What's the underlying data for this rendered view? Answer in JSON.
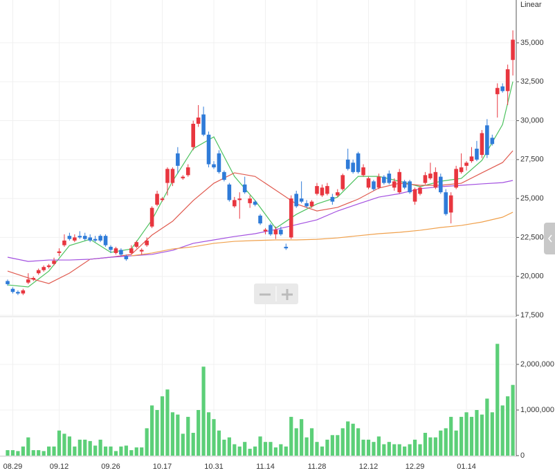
{
  "chart_data": [
    {
      "type": "candlestick",
      "axis_label": "Linear",
      "categories": [
        null,
        "08.29",
        null,
        null,
        null,
        null,
        null,
        null,
        null,
        null,
        "09.12",
        null,
        null,
        null,
        null,
        null,
        null,
        null,
        null,
        null,
        "09.26",
        null,
        null,
        null,
        null,
        null,
        null,
        null,
        null,
        null,
        "10.17",
        null,
        null,
        null,
        null,
        null,
        null,
        null,
        null,
        null,
        "10.31",
        null,
        null,
        null,
        null,
        null,
        null,
        null,
        null,
        null,
        "11.14",
        null,
        null,
        null,
        null,
        null,
        null,
        null,
        null,
        null,
        "11.28",
        null,
        null,
        null,
        null,
        null,
        null,
        null,
        null,
        null,
        "12.12",
        null,
        null,
        null,
        null,
        null,
        null,
        null,
        null,
        "12.29",
        null,
        null,
        null,
        null,
        null,
        null,
        null,
        null,
        null,
        "01.14",
        null,
        null,
        null,
        null,
        null,
        null,
        null,
        null,
        null
      ],
      "up_color": "#e8363f",
      "down_color": "#2f7bd8",
      "ohlc": [
        [
          19700,
          19800,
          19400,
          19500
        ],
        [
          19200,
          19300,
          18900,
          19000
        ],
        [
          19000,
          19100,
          18800,
          18900
        ],
        [
          18900,
          19200,
          18800,
          19100
        ],
        [
          19600,
          20200,
          19500,
          19800
        ],
        [
          19800,
          20000,
          19700,
          19900
        ],
        [
          20200,
          20500,
          20100,
          20400
        ],
        [
          20400,
          20700,
          20300,
          20600
        ],
        [
          20600,
          20800,
          20500,
          20700
        ],
        [
          20800,
          21200,
          20700,
          21000
        ],
        [
          21500,
          21800,
          21300,
          21600
        ],
        [
          22000,
          22700,
          21900,
          22300
        ],
        [
          22600,
          22800,
          22300,
          22400
        ],
        [
          22300,
          22700,
          22200,
          22500
        ],
        [
          22600,
          22900,
          22400,
          22500
        ],
        [
          22600,
          22800,
          22300,
          22400
        ],
        [
          22500,
          22700,
          22200,
          22300
        ],
        [
          22400,
          22600,
          22200,
          22300
        ],
        [
          22600,
          22700,
          22200,
          22300
        ],
        [
          22600,
          22700,
          21900,
          22000
        ],
        [
          21900,
          22000,
          21500,
          21700
        ],
        [
          21500,
          21900,
          21400,
          21800
        ],
        [
          21700,
          21800,
          21300,
          21400
        ],
        [
          21300,
          21400,
          21000,
          21100
        ],
        [
          21500,
          22000,
          21400,
          21800
        ],
        [
          21900,
          22300,
          21800,
          22200
        ],
        [
          21600,
          21800,
          21400,
          21700
        ],
        [
          22000,
          22500,
          21900,
          22300
        ],
        [
          23200,
          24500,
          23100,
          24400
        ],
        [
          24600,
          25500,
          24500,
          25300
        ],
        [
          24900,
          25100,
          24800,
          25000
        ],
        [
          26000,
          27000,
          25200,
          26900
        ],
        [
          26000,
          27000,
          25800,
          26900
        ],
        [
          27900,
          28300,
          26600,
          27100
        ],
        [
          26300,
          26500,
          26200,
          26400
        ],
        [
          26500,
          27200,
          26400,
          27000
        ],
        [
          28300,
          30000,
          28100,
          29800
        ],
        [
          29800,
          31000,
          29600,
          30200
        ],
        [
          30400,
          30900,
          29000,
          29100
        ],
        [
          29100,
          29300,
          27000,
          27200
        ],
        [
          27200,
          27400,
          26900,
          27000
        ],
        [
          27900,
          28100,
          26600,
          26700
        ],
        [
          26700,
          26800,
          26100,
          26200
        ],
        [
          25900,
          26000,
          24800,
          24900
        ],
        [
          24500,
          25100,
          24400,
          24900
        ],
        [
          24900,
          25400,
          23700,
          25000
        ],
        [
          25900,
          26400,
          25300,
          25400
        ],
        [
          24700,
          25200,
          24400,
          25000
        ],
        [
          24800,
          24900,
          24500,
          24600
        ],
        [
          23900,
          24000,
          23300,
          23400
        ],
        [
          22900,
          23100,
          22700,
          23000
        ],
        [
          23300,
          23400,
          22600,
          22700
        ],
        [
          22700,
          23200,
          22400,
          23000
        ],
        [
          23000,
          23200,
          22600,
          22700
        ],
        [
          21900,
          22100,
          21700,
          21800
        ],
        [
          22500,
          25200,
          22400,
          25000
        ],
        [
          25300,
          25500,
          24400,
          24500
        ],
        [
          25000,
          26100,
          24700,
          24800
        ],
        [
          24700,
          24900,
          24400,
          24500
        ],
        [
          24500,
          24900,
          24400,
          24800
        ],
        [
          25300,
          26000,
          25200,
          25800
        ],
        [
          25200,
          25900,
          25100,
          25700
        ],
        [
          25300,
          26000,
          25200,
          25800
        ],
        [
          25100,
          25300,
          24600,
          24800
        ],
        [
          25200,
          25600,
          25100,
          25400
        ],
        [
          25600,
          26600,
          25500,
          26500
        ],
        [
          27500,
          28200,
          26800,
          26900
        ],
        [
          27300,
          27500,
          26600,
          26700
        ],
        [
          27900,
          28000,
          26600,
          26700
        ],
        [
          26500,
          27200,
          26400,
          27000
        ],
        [
          25700,
          26400,
          25600,
          26300
        ],
        [
          26100,
          26200,
          25500,
          25600
        ],
        [
          25700,
          26600,
          25600,
          26400
        ],
        [
          26400,
          26500,
          25900,
          26000
        ],
        [
          26600,
          26800,
          25900,
          26000
        ],
        [
          25700,
          26300,
          25500,
          26100
        ],
        [
          25400,
          26900,
          25300,
          26700
        ],
        [
          26100,
          26200,
          25600,
          25700
        ],
        [
          26100,
          26200,
          25300,
          25400
        ],
        [
          24800,
          25700,
          24600,
          25600
        ],
        [
          25300,
          25800,
          25200,
          25700
        ],
        [
          26000,
          26700,
          25900,
          26500
        ],
        [
          26300,
          27300,
          26200,
          26600
        ],
        [
          25700,
          27000,
          25600,
          26700
        ],
        [
          26400,
          26600,
          25300,
          25400
        ],
        [
          25400,
          25600,
          23900,
          24000
        ],
        [
          24100,
          25400,
          23400,
          25200
        ],
        [
          25700,
          27100,
          25600,
          26900
        ],
        [
          26700,
          27900,
          26600,
          27000
        ],
        [
          27100,
          27400,
          26800,
          27300
        ],
        [
          27400,
          28300,
          27300,
          27700
        ],
        [
          28200,
          28700,
          27400,
          27500
        ],
        [
          27800,
          29400,
          27600,
          29200
        ],
        [
          29700,
          30100,
          27600,
          27800
        ],
        [
          28900,
          29100,
          28400,
          28500
        ],
        [
          31700,
          32400,
          30200,
          32100
        ],
        [
          32200,
          32400,
          31800,
          31900
        ],
        [
          31900,
          33600,
          31000,
          33300
        ],
        [
          33900,
          35800,
          32900,
          35200
        ]
      ],
      "series": [
        {
          "color": "#4cc25e",
          "x": [
            0,
            4,
            8,
            12,
            16,
            20,
            24,
            28,
            32,
            36,
            40,
            44,
            48,
            52,
            56,
            60,
            64,
            68,
            72,
            76,
            80,
            84,
            88,
            92,
            96,
            98
          ],
          "values": [
            19450,
            19320,
            20340,
            21980,
            22380,
            21540,
            21760,
            23630,
            26110,
            28200,
            28960,
            26420,
            24870,
            23090,
            23980,
            24650,
            25090,
            26420,
            26420,
            26110,
            25760,
            26110,
            26290,
            27450,
            29750,
            32510
          ]
        },
        {
          "color": "#e05a4f",
          "x": [
            0,
            4,
            8,
            12,
            16,
            20,
            24,
            28,
            32,
            36,
            40,
            44,
            48,
            52,
            56,
            60,
            64,
            68,
            72,
            76,
            80,
            84,
            88,
            92,
            96,
            98
          ],
          "values": [
            20340,
            19900,
            19540,
            20210,
            21100,
            21230,
            21410,
            22650,
            23540,
            24870,
            25980,
            26650,
            26420,
            25540,
            24650,
            24200,
            24430,
            24960,
            25670,
            25980,
            25850,
            25850,
            25980,
            26650,
            27310,
            28070
          ]
        },
        {
          "color": "#a24fe0",
          "x": [
            0,
            4,
            8,
            12,
            16,
            20,
            24,
            28,
            32,
            36,
            40,
            44,
            48,
            52,
            56,
            60,
            64,
            68,
            72,
            76,
            80,
            84,
            88,
            92,
            96,
            98
          ],
          "values": [
            21230,
            20960,
            21050,
            21050,
            21100,
            21230,
            21320,
            21410,
            21670,
            22120,
            22340,
            22560,
            22740,
            23010,
            23320,
            23630,
            24200,
            24650,
            25090,
            25310,
            25630,
            25760,
            25850,
            25940,
            26020,
            26160
          ]
        },
        {
          "color": "#f0a04b",
          "x": [
            24,
            28,
            32,
            36,
            40,
            44,
            48,
            52,
            56,
            60,
            64,
            68,
            72,
            76,
            80,
            84,
            88,
            92,
            96,
            98
          ],
          "values": [
            21320,
            21500,
            21760,
            21900,
            22120,
            22250,
            22300,
            22340,
            22340,
            22380,
            22470,
            22610,
            22740,
            22830,
            22960,
            23140,
            23270,
            23490,
            23800,
            24120
          ]
        }
      ],
      "ylim": [
        17500,
        37750
      ],
      "yticks": [
        {
          "value": 17500,
          "label": "17,500"
        },
        {
          "value": 20000,
          "label": "20,000"
        },
        {
          "value": 22500,
          "label": "22,500"
        },
        {
          "value": 25000,
          "label": "25,000"
        },
        {
          "value": 27500,
          "label": "27,500"
        },
        {
          "value": 30000,
          "label": "30,000"
        },
        {
          "value": 32500,
          "label": "32,500"
        },
        {
          "value": 35000,
          "label": "35,000"
        }
      ],
      "grid": true
    },
    {
      "type": "bar",
      "color": "#5ccf78",
      "values": [
        120000,
        120000,
        100000,
        200000,
        400000,
        120000,
        120000,
        100000,
        200000,
        200000,
        550000,
        480000,
        420000,
        200000,
        350000,
        350000,
        320000,
        220000,
        350000,
        200000,
        200000,
        100000,
        200000,
        220000,
        120000,
        180000,
        180000,
        600000,
        1100000,
        1000000,
        1300000,
        1450000,
        950000,
        900000,
        480000,
        850000,
        500000,
        1000000,
        1950000,
        950000,
        800000,
        550000,
        350000,
        400000,
        250000,
        200000,
        300000,
        150000,
        200000,
        420000,
        300000,
        300000,
        180000,
        250000,
        200000,
        850000,
        600000,
        800000,
        400000,
        600000,
        300000,
        200000,
        350000,
        450000,
        450000,
        600000,
        750000,
        700000,
        600000,
        350000,
        350000,
        300000,
        420000,
        250000,
        300000,
        250000,
        250000,
        200000,
        250000,
        350000,
        250000,
        500000,
        400000,
        400000,
        550000,
        600000,
        850000,
        550000,
        850000,
        950000,
        850000,
        1000000,
        900000,
        1250000,
        950000,
        2450000,
        1100000,
        1300000,
        1550000
      ],
      "ylim": [
        0,
        3000000
      ],
      "yticks": [
        0,
        {
          "value": 1000000,
          "label": "1,000,000"
        },
        {
          "value": 2000000,
          "label": "2,000,000"
        }
      ],
      "grid": true
    }
  ]
}
